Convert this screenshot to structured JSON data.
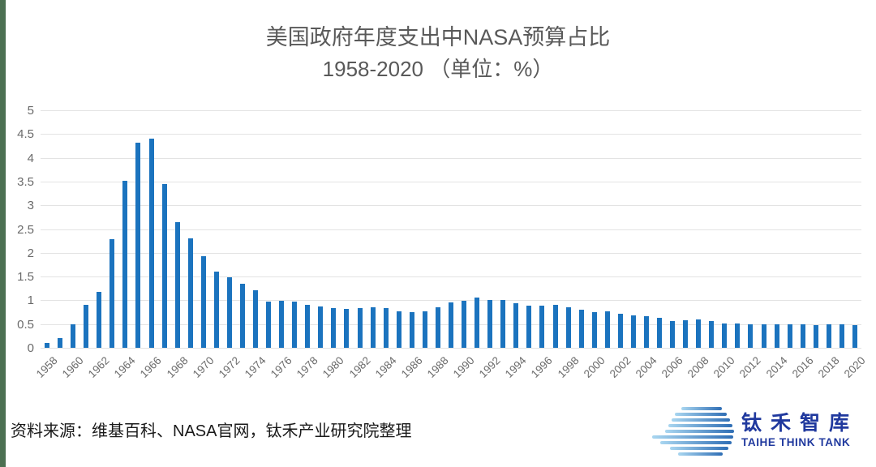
{
  "page": {
    "edge_strip_color": "#4C7052",
    "background_color": "#FFFFFF"
  },
  "title": {
    "line1": "美国政府年度支出中NASA预算占比",
    "line2": "1958-2020 （单位：%）",
    "color": "#595959"
  },
  "chart_data": {
    "type": "bar",
    "title": "美国政府年度支出中NASA预算占比 1958-2020（单位：%）",
    "categories": [
      1958,
      1959,
      1960,
      1961,
      1962,
      1963,
      1964,
      1965,
      1966,
      1967,
      1968,
      1969,
      1970,
      1971,
      1972,
      1973,
      1974,
      1975,
      1976,
      1977,
      1978,
      1979,
      1980,
      1981,
      1982,
      1983,
      1984,
      1985,
      1986,
      1987,
      1988,
      1989,
      1990,
      1991,
      1992,
      1993,
      1994,
      1995,
      1996,
      1997,
      1998,
      1999,
      2000,
      2001,
      2002,
      2003,
      2004,
      2005,
      2006,
      2007,
      2008,
      2009,
      2010,
      2011,
      2012,
      2013,
      2014,
      2015,
      2016,
      2017,
      2018,
      2019,
      2020
    ],
    "values": [
      0.1,
      0.2,
      0.5,
      0.9,
      1.18,
      2.29,
      3.52,
      4.31,
      4.41,
      3.45,
      2.65,
      2.31,
      1.92,
      1.61,
      1.48,
      1.35,
      1.21,
      0.98,
      0.99,
      0.98,
      0.91,
      0.87,
      0.84,
      0.82,
      0.83,
      0.85,
      0.83,
      0.77,
      0.75,
      0.76,
      0.85,
      0.96,
      0.99,
      1.05,
      1.01,
      1.01,
      0.94,
      0.88,
      0.89,
      0.9,
      0.86,
      0.8,
      0.75,
      0.76,
      0.72,
      0.68,
      0.66,
      0.63,
      0.57,
      0.58,
      0.6,
      0.57,
      0.52,
      0.51,
      0.5,
      0.49,
      0.5,
      0.49,
      0.5,
      0.47,
      0.49,
      0.49,
      0.48
    ],
    "xlabel": "",
    "ylabel": "",
    "ylim": [
      0,
      5
    ],
    "yticks": [
      0,
      0.5,
      1,
      1.5,
      2,
      2.5,
      3,
      3.5,
      4,
      4.5,
      5
    ],
    "ytick_labels": [
      "0",
      "0.5",
      "1",
      "1.5",
      "2",
      "2.5",
      "3",
      "3.5",
      "4",
      "4.5",
      "5"
    ],
    "xtick_labels": [
      "1958",
      "1960",
      "1962",
      "1964",
      "1966",
      "1968",
      "1970",
      "1972",
      "1974",
      "1976",
      "1978",
      "1980",
      "1982",
      "1984",
      "1986",
      "1988",
      "1990",
      "1992",
      "1994",
      "1996",
      "1998",
      "2000",
      "2002",
      "2004",
      "2006",
      "2008",
      "2010",
      "2012",
      "2014",
      "2016",
      "2018",
      "2020"
    ],
    "grid": true,
    "legend": false,
    "bar_color": "#1B73BE",
    "gridline_color": "#E3E3E3",
    "axis_label_color": "#6A6A6A"
  },
  "footer": {
    "source_text": "资料来源：维基百科、NASA官网，钛禾产业研究院整理"
  },
  "logo": {
    "cn": "钛禾智库",
    "en": "TAIHE THINK TANK",
    "text_color": "#20399E",
    "mark_color_light": "#A9D6F0",
    "mark_color_dark": "#2F6EB5"
  }
}
